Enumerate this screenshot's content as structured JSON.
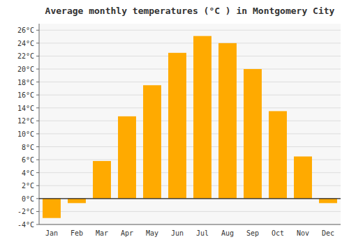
{
  "chart_data": {
    "type": "bar",
    "title": "Average monthly temperatures (°C ) in Montgomery City",
    "categories": [
      "Jan",
      "Feb",
      "Mar",
      "Apr",
      "May",
      "Jun",
      "Jul",
      "Aug",
      "Sep",
      "Oct",
      "Nov",
      "Dec"
    ],
    "values": [
      -3.0,
      -0.7,
      5.8,
      12.7,
      17.5,
      22.5,
      25.1,
      24.0,
      20.0,
      13.5,
      6.5,
      -0.7
    ],
    "color": "#FFAA00",
    "ylim": [
      -4,
      27
    ],
    "yticks": [
      {
        "value": -4,
        "label": "-4°C"
      },
      {
        "value": -2,
        "label": "-2°C"
      },
      {
        "value": 0,
        "label": "0°C"
      },
      {
        "value": 2,
        "label": "2°C"
      },
      {
        "value": 4,
        "label": "4°C"
      },
      {
        "value": 6,
        "label": "6°C"
      },
      {
        "value": 8,
        "label": "8°C"
      },
      {
        "value": 10,
        "label": "10°C"
      },
      {
        "value": 12,
        "label": "12°C"
      },
      {
        "value": 14,
        "label": "14°C"
      },
      {
        "value": 16,
        "label": "16°C"
      },
      {
        "value": 18,
        "label": "18°C"
      },
      {
        "value": 20,
        "label": "20°C"
      },
      {
        "value": 22,
        "label": "22°C"
      },
      {
        "value": 24,
        "label": "24°C"
      },
      {
        "value": 26,
        "label": "26°C"
      }
    ],
    "grid": true
  }
}
